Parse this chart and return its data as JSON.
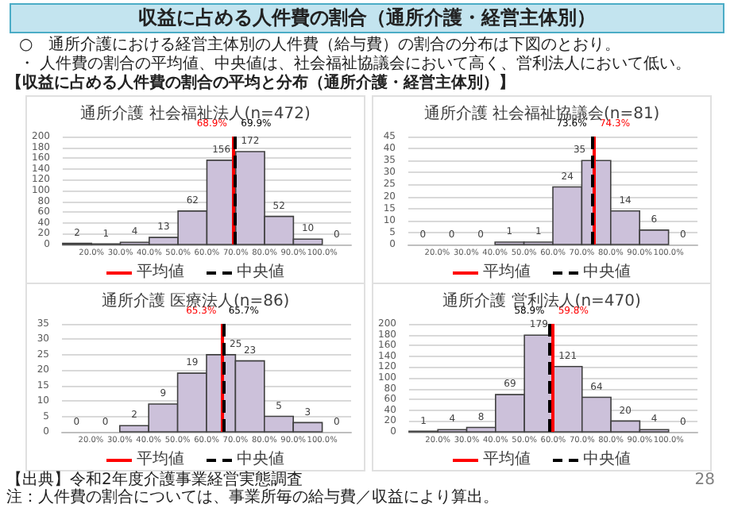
{
  "chart_data": [
    {
      "type": "other",
      "title": "収益に占める人件費の割合（通所介護・経営主体別）",
      "annotations": [
        "○　通所介護における経営主体別の人件費（給与費）の割合の分布は下図のとおり。",
        "・ 人件費の割合の平均値、中央値は、社会福祉協議会において高く、営利法人において低い。",
        "【収益に占める人件費の割合の平均と分布（通所介護・経営主体別）】"
      ]
    },
    {
      "type": "histogram",
      "title": "通所介護 社会福祉法人(n=472)",
      "bins": [
        10,
        20,
        30,
        40,
        50,
        60,
        70,
        80,
        90,
        100,
        110
      ],
      "values": [
        2,
        1,
        4,
        13,
        62,
        156,
        172,
        52,
        10,
        0
      ],
      "color": "#ccc1da",
      "xlim": [
        10,
        110
      ],
      "xticks": [
        {
          "value": 20,
          "label": "20.0%"
        },
        {
          "value": 30,
          "label": "30.0%"
        },
        {
          "value": 40,
          "label": "40.0%"
        },
        {
          "value": 50,
          "label": "50.0%"
        },
        {
          "value": 60,
          "label": "60.0%"
        },
        {
          "value": 70,
          "label": "70.0%"
        },
        {
          "value": 80,
          "label": "80.0%"
        },
        {
          "value": 90,
          "label": "90.0%"
        },
        {
          "value": 100,
          "label": "100.0%"
        }
      ],
      "ylim": [
        0,
        200
      ],
      "yticks": [
        0,
        20,
        40,
        60,
        80,
        100,
        120,
        140,
        160,
        180,
        200
      ],
      "grid": "y",
      "data_labels": true,
      "annotations": [
        "平均値",
        "中央値"
      ],
      "ref_lines": [
        {
          "axis": "x",
          "value": 68.9,
          "label": "68.9%",
          "color": "#ff0000",
          "line_style": "solid"
        },
        {
          "axis": "x",
          "value": 69.9,
          "label": "69.9%",
          "color": "#000000",
          "line_style": "dashed"
        }
      ]
    },
    {
      "type": "histogram",
      "title": "通所介護 社会福祉協議会(n=81)",
      "bins": [
        10,
        20,
        30,
        40,
        50,
        60,
        70,
        80,
        90,
        100,
        110
      ],
      "values": [
        0,
        0,
        0,
        1,
        1,
        24,
        35,
        14,
        6,
        0
      ],
      "color": "#ccc1da",
      "xlim": [
        10,
        110
      ],
      "xticks": [
        {
          "value": 20,
          "label": "20.0%"
        },
        {
          "value": 30,
          "label": "30.0%"
        },
        {
          "value": 40,
          "label": "40.0%"
        },
        {
          "value": 50,
          "label": "50.0%"
        },
        {
          "value": 60,
          "label": "60.0%"
        },
        {
          "value": 70,
          "label": "70.0%"
        },
        {
          "value": 80,
          "label": "80.0%"
        },
        {
          "value": 90,
          "label": "90.0%"
        },
        {
          "value": 100,
          "label": "100.0%"
        }
      ],
      "ylim": [
        0,
        45
      ],
      "yticks": [
        0,
        5,
        10,
        15,
        20,
        25,
        30,
        35,
        40,
        45
      ],
      "grid": "y",
      "data_labels": true,
      "annotations": [
        "平均値",
        "中央値"
      ],
      "ref_lines": [
        {
          "axis": "x",
          "value": 74.3,
          "label": "74.3%",
          "color": "#ff0000",
          "line_style": "solid"
        },
        {
          "axis": "x",
          "value": 73.6,
          "label": "73.6%",
          "color": "#000000",
          "line_style": "dashed"
        }
      ]
    },
    {
      "type": "histogram",
      "title": "通所介護 医療法人(n=86)",
      "bins": [
        10,
        20,
        30,
        40,
        50,
        60,
        70,
        80,
        90,
        100,
        110
      ],
      "values": [
        0,
        0,
        2,
        9,
        19,
        25,
        23,
        5,
        3,
        0
      ],
      "color": "#ccc1da",
      "xlim": [
        10,
        110
      ],
      "xticks": [
        {
          "value": 20,
          "label": "20.0%"
        },
        {
          "value": 30,
          "label": "30.0%"
        },
        {
          "value": 40,
          "label": "40.0%"
        },
        {
          "value": 50,
          "label": "50.0%"
        },
        {
          "value": 60,
          "label": "60.0%"
        },
        {
          "value": 70,
          "label": "70.0%"
        },
        {
          "value": 80,
          "label": "80.0%"
        },
        {
          "value": 90,
          "label": "90.0%"
        },
        {
          "value": 100,
          "label": "100.0%"
        }
      ],
      "ylim": [
        0,
        35
      ],
      "yticks": [
        0,
        5,
        10,
        15,
        20,
        25,
        30,
        35
      ],
      "grid": "y",
      "data_labels": true,
      "annotations": [
        "平均値",
        "中央値"
      ],
      "ref_lines": [
        {
          "axis": "x",
          "value": 65.3,
          "label": "65.3%",
          "color": "#ff0000",
          "line_style": "solid"
        },
        {
          "axis": "x",
          "value": 65.7,
          "label": "65.7%",
          "color": "#000000",
          "line_style": "dashed"
        }
      ]
    },
    {
      "type": "histogram",
      "title": "通所介護 営利法人(n=470)",
      "bins": [
        10,
        20,
        30,
        40,
        50,
        60,
        70,
        80,
        90,
        100,
        110
      ],
      "values": [
        1,
        4,
        8,
        69,
        179,
        121,
        64,
        20,
        4,
        0
      ],
      "color": "#ccc1da",
      "xlim": [
        10,
        110
      ],
      "xticks": [
        {
          "value": 20,
          "label": "20.0%"
        },
        {
          "value": 30,
          "label": "30.0%"
        },
        {
          "value": 40,
          "label": "40.0%"
        },
        {
          "value": 50,
          "label": "50.0%"
        },
        {
          "value": 60,
          "label": "60.0%"
        },
        {
          "value": 70,
          "label": "70.0%"
        },
        {
          "value": 80,
          "label": "80.0%"
        },
        {
          "value": 90,
          "label": "90.0%"
        },
        {
          "value": 100,
          "label": "100.0%"
        }
      ],
      "ylim": [
        0,
        200
      ],
      "yticks": [
        0,
        20,
        40,
        60,
        80,
        100,
        120,
        140,
        160,
        180,
        200
      ],
      "grid": "y",
      "data_labels": true,
      "annotations": [
        "平均値",
        "中央値"
      ],
      "ref_lines": [
        {
          "axis": "x",
          "value": 59.8,
          "label": "59.8%",
          "color": "#ff0000",
          "line_style": "solid"
        },
        {
          "axis": "x",
          "value": 58.9,
          "label": "58.9%",
          "color": "#000000",
          "line_style": "dashed"
        }
      ]
    },
    {
      "type": "other",
      "annotations": [
        "【出典】令和2年度介護事業経営実態調査",
        "注：人件費の割合については、事業所毎の給与費／収益により算出。",
        "28"
      ]
    }
  ]
}
